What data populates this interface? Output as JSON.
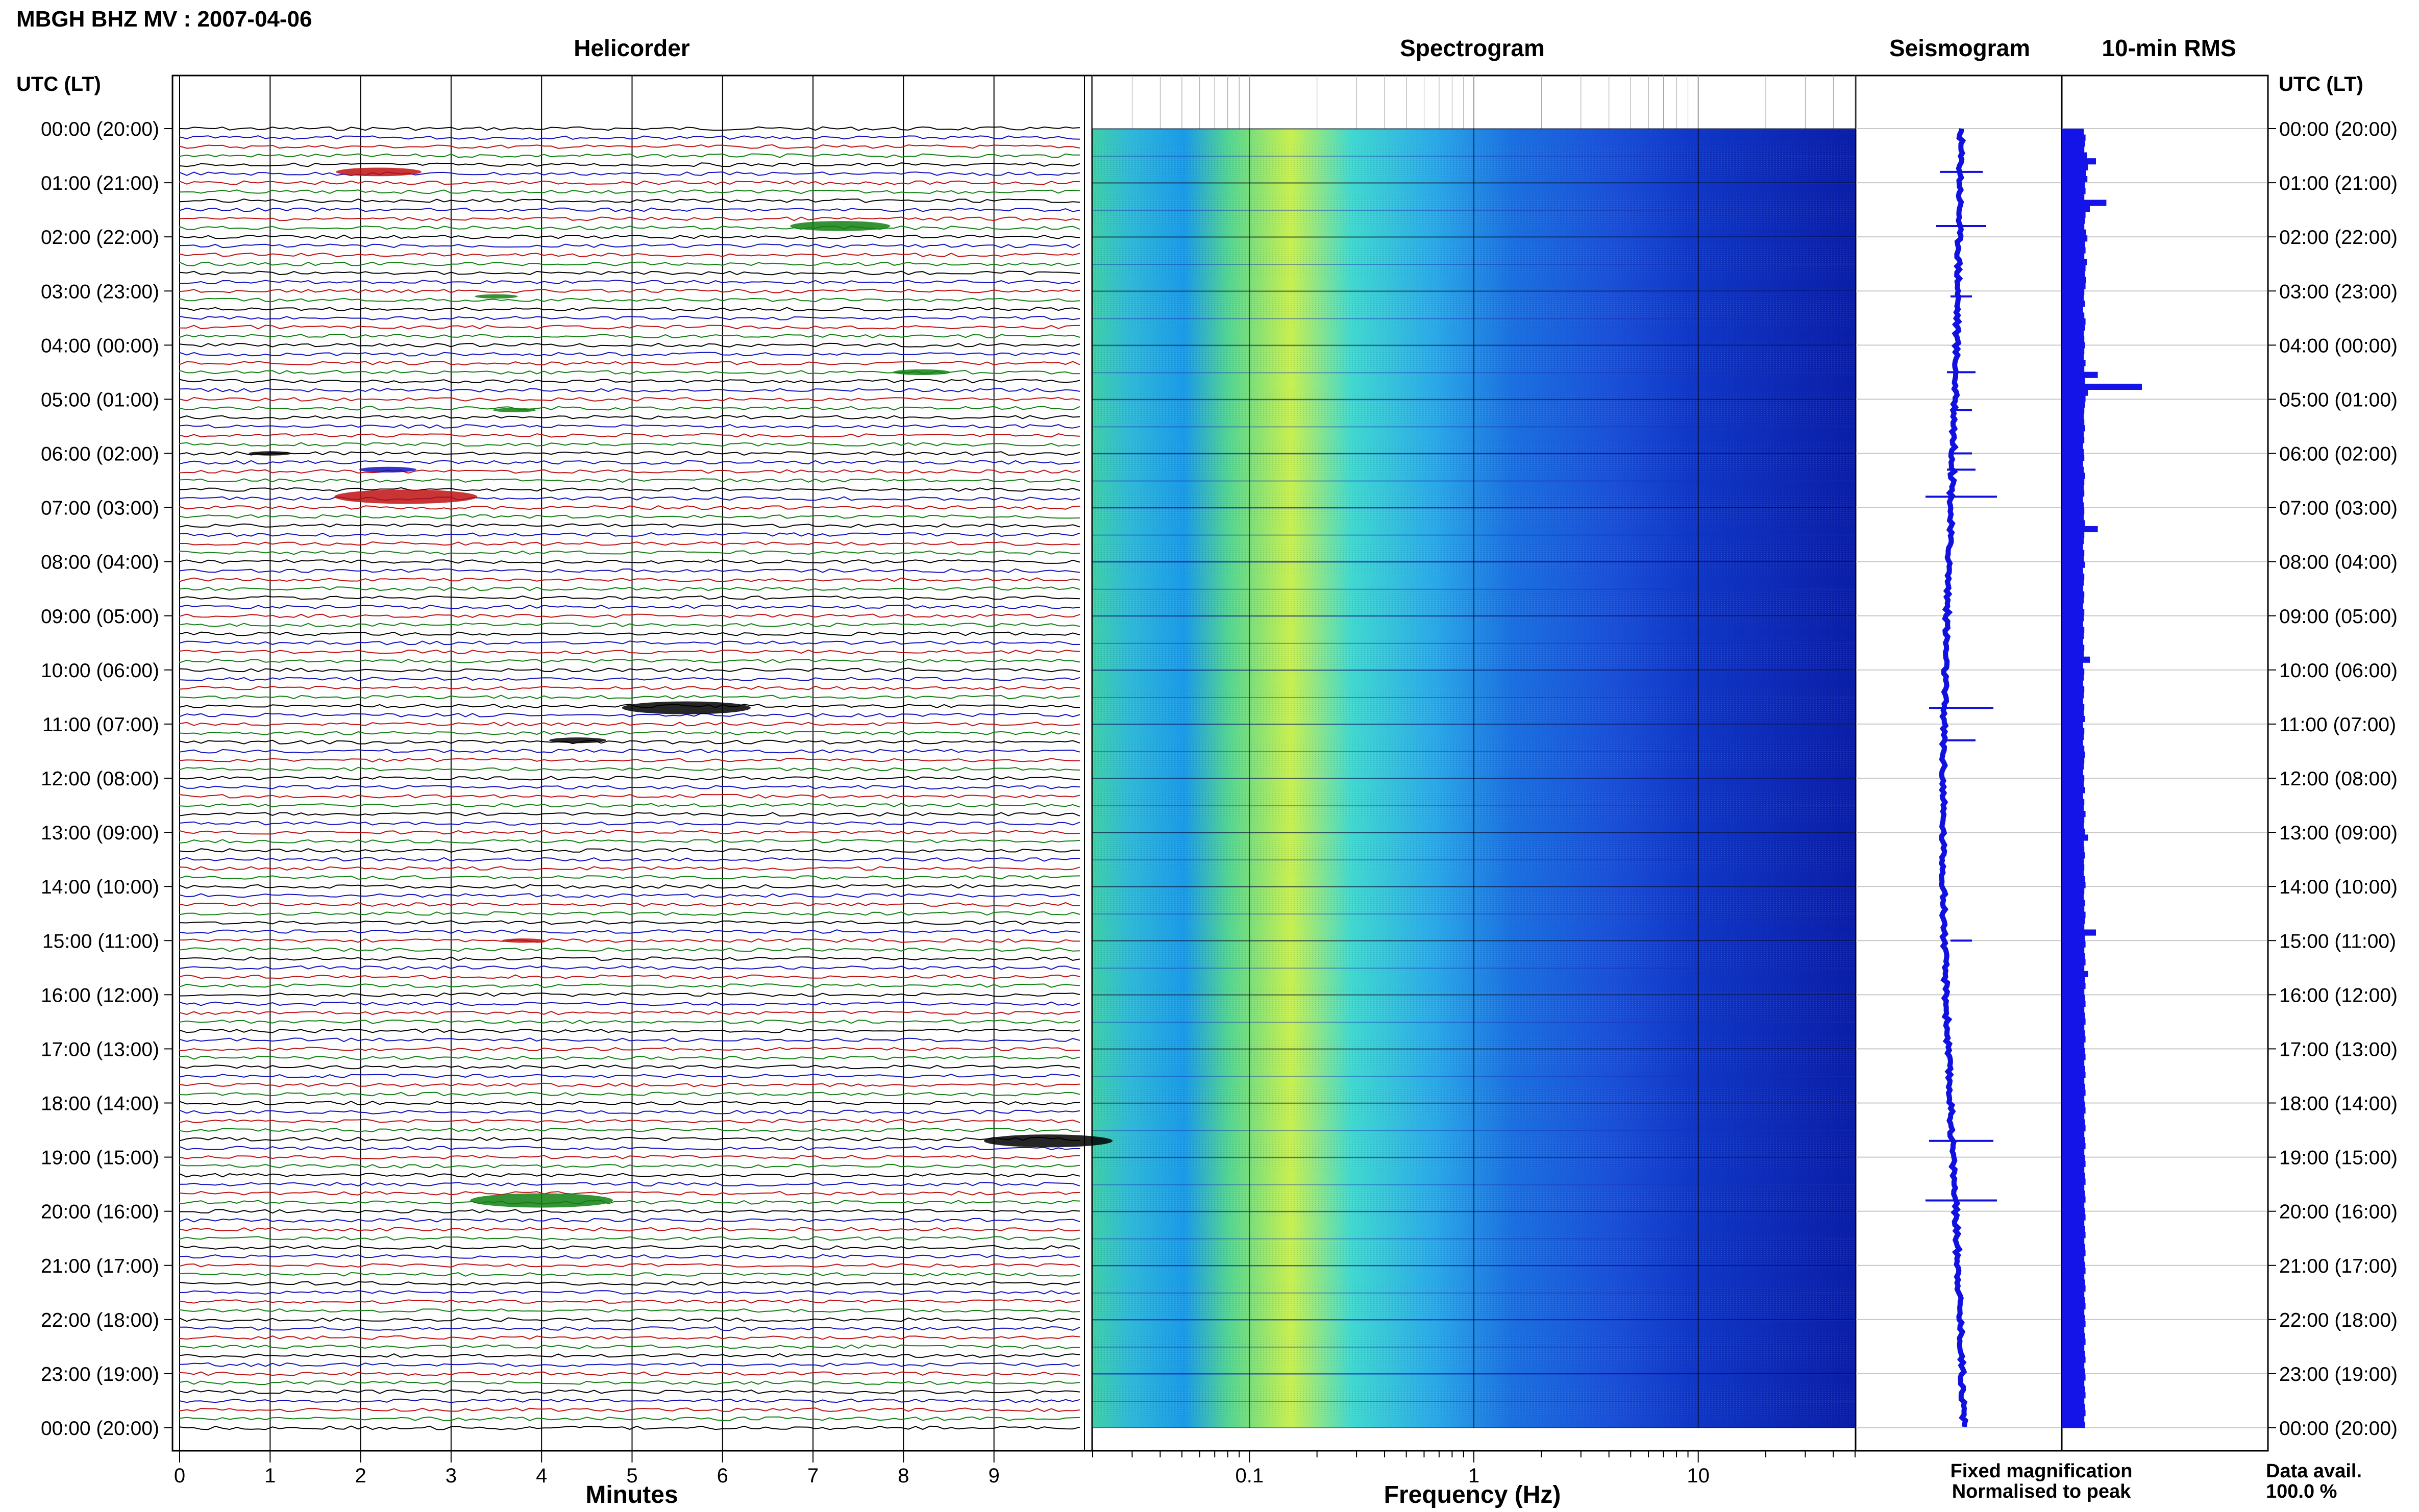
{
  "header": {
    "title": "MBGH BHZ MV : 2007-04-06"
  },
  "panels": {
    "helicorder": "Helicorder",
    "spectrogram": "Spectrogram",
    "seismogram": "Seismogram",
    "rms": "10-min RMS"
  },
  "axis": {
    "time_label_left": "UTC (LT)",
    "time_label_right": "UTC (LT)",
    "minutes_label": "Minutes",
    "frequency_label": "Frequency (Hz)"
  },
  "legend": {
    "fixed": "Fixed magnification",
    "normalised": "Normalised to peak",
    "fixed_color": "#1010e0",
    "normalised_color": "#e01010"
  },
  "availability": {
    "label": "Data avail.",
    "value": "100.0 %"
  },
  "chart_data": {
    "type": "helicorder",
    "time_ticks": [
      "00:00 (20:00)",
      "01:00 (21:00)",
      "02:00 (22:00)",
      "03:00 (23:00)",
      "04:00 (00:00)",
      "05:00 (01:00)",
      "06:00 (02:00)",
      "07:00 (03:00)",
      "08:00 (04:00)",
      "09:00 (05:00)",
      "10:00 (06:00)",
      "11:00 (07:00)",
      "12:00 (08:00)",
      "13:00 (09:00)",
      "14:00 (10:00)",
      "15:00 (11:00)",
      "16:00 (12:00)",
      "17:00 (13:00)",
      "18:00 (14:00)",
      "19:00 (15:00)",
      "20:00 (16:00)",
      "21:00 (17:00)",
      "22:00 (18:00)",
      "23:00 (19:00)",
      "00:00 (20:00)"
    ],
    "minute_ticks": [
      "0",
      "1",
      "2",
      "3",
      "4",
      "5",
      "6",
      "7",
      "8",
      "9"
    ],
    "freq_ticks": [
      "0.1",
      "1",
      "10"
    ],
    "freq_range": [
      0.02,
      50
    ],
    "trace_colors": [
      "#000000",
      "#1010c0",
      "#c01010",
      "#108010"
    ],
    "traces_per_hour": 6,
    "events": [
      {
        "hour": 0.8,
        "minute": 2.2,
        "amp": 6,
        "color": "#c01010"
      },
      {
        "hour": 1.8,
        "minute": 7.3,
        "amp": 7,
        "color": "#108010"
      },
      {
        "hour": 3.1,
        "minute": 3.5,
        "amp": 3,
        "color": "#108010"
      },
      {
        "hour": 4.5,
        "minute": 8.2,
        "amp": 4,
        "color": "#108010"
      },
      {
        "hour": 5.2,
        "minute": 3.7,
        "amp": 3,
        "color": "#108010"
      },
      {
        "hour": 6.0,
        "minute": 1.0,
        "amp": 3,
        "color": "#000000"
      },
      {
        "hour": 6.3,
        "minute": 2.3,
        "amp": 4,
        "color": "#1010c0"
      },
      {
        "hour": 6.8,
        "minute": 2.5,
        "amp": 10,
        "color": "#c01010"
      },
      {
        "hour": 10.7,
        "minute": 5.6,
        "amp": 9,
        "color": "#000000"
      },
      {
        "hour": 11.3,
        "minute": 4.4,
        "amp": 4,
        "color": "#000000"
      },
      {
        "hour": 15.0,
        "minute": 3.8,
        "amp": 3,
        "color": "#c01010"
      },
      {
        "hour": 18.7,
        "minute": 9.6,
        "amp": 9,
        "color": "#000000"
      },
      {
        "hour": 19.8,
        "minute": 4.0,
        "amp": 10,
        "color": "#108010"
      }
    ],
    "rms_values": [
      0.35,
      0.38,
      0.37,
      0.36,
      0.4,
      0.55,
      0.42,
      0.39,
      0.41,
      0.37,
      0.38,
      0.36,
      0.72,
      0.45,
      0.38,
      0.37,
      0.36,
      0.39,
      0.41,
      0.37,
      0.38,
      0.36,
      0.4,
      0.38,
      0.37,
      0.39,
      0.38,
      0.36,
      0.35,
      0.37,
      0.34,
      0.36,
      0.38,
      0.37,
      0.35,
      0.36,
      0.37,
      0.36,
      0.35,
      0.38,
      0.36,
      0.58,
      0.37,
      1.3,
      0.42,
      0.38,
      0.37,
      0.36,
      0.35,
      0.36,
      0.37,
      0.35,
      0.36,
      0.34,
      0.35,
      0.36,
      0.34,
      0.35,
      0.37,
      0.36,
      0.35,
      0.36,
      0.34,
      0.35,
      0.36,
      0.35,
      0.37,
      0.58,
      0.36,
      0.35,
      0.34,
      0.36,
      0.35,
      0.37,
      0.34,
      0.36,
      0.35,
      0.34,
      0.36,
      0.35,
      0.34,
      0.36,
      0.35,
      0.34,
      0.36,
      0.35,
      0.34,
      0.36,
      0.35,
      0.45,
      0.34,
      0.36,
      0.35,
      0.34,
      0.36,
      0.35,
      0.34,
      0.36,
      0.35,
      0.37,
      0.34,
      0.36,
      0.35,
      0.34,
      0.36,
      0.37,
      0.36,
      0.35,
      0.34,
      0.36,
      0.35,
      0.37,
      0.34,
      0.36,
      0.35,
      0.38,
      0.36,
      0.35,
      0.37,
      0.42,
      0.35,
      0.36,
      0.37,
      0.35,
      0.36,
      0.35,
      0.37,
      0.38,
      0.36,
      0.35,
      0.37,
      0.36,
      0.38,
      0.37,
      0.36,
      0.55,
      0.37,
      0.38,
      0.36,
      0.37,
      0.38,
      0.36,
      0.42,
      0.37,
      0.38,
      0.36,
      0.37,
      0.38,
      0.36,
      0.37,
      0.38,
      0.36,
      0.37,
      0.38,
      0.36,
      0.37,
      0.38,
      0.36,
      0.37,
      0.38,
      0.36,
      0.37,
      0.38,
      0.36,
      0.37,
      0.38,
      0.36,
      0.37,
      0.38,
      0.36,
      0.37,
      0.38,
      0.36,
      0.37,
      0.38,
      0.36,
      0.37,
      0.38,
      0.36,
      0.37,
      0.38,
      0.36,
      0.37,
      0.38,
      0.36,
      0.37,
      0.38,
      0.36,
      0.37,
      0.38,
      0.36,
      0.37,
      0.38,
      0.36,
      0.37,
      0.38,
      0.36,
      0.37,
      0.38,
      0.36,
      0.37,
      0.38,
      0.36,
      0.37,
      0.38,
      0.36,
      0.37,
      0.38,
      0.36,
      0.37,
      0.38,
      0.36,
      0.37,
      0.38,
      0.36,
      0.37,
      0.38,
      0.36,
      0.37
    ]
  }
}
